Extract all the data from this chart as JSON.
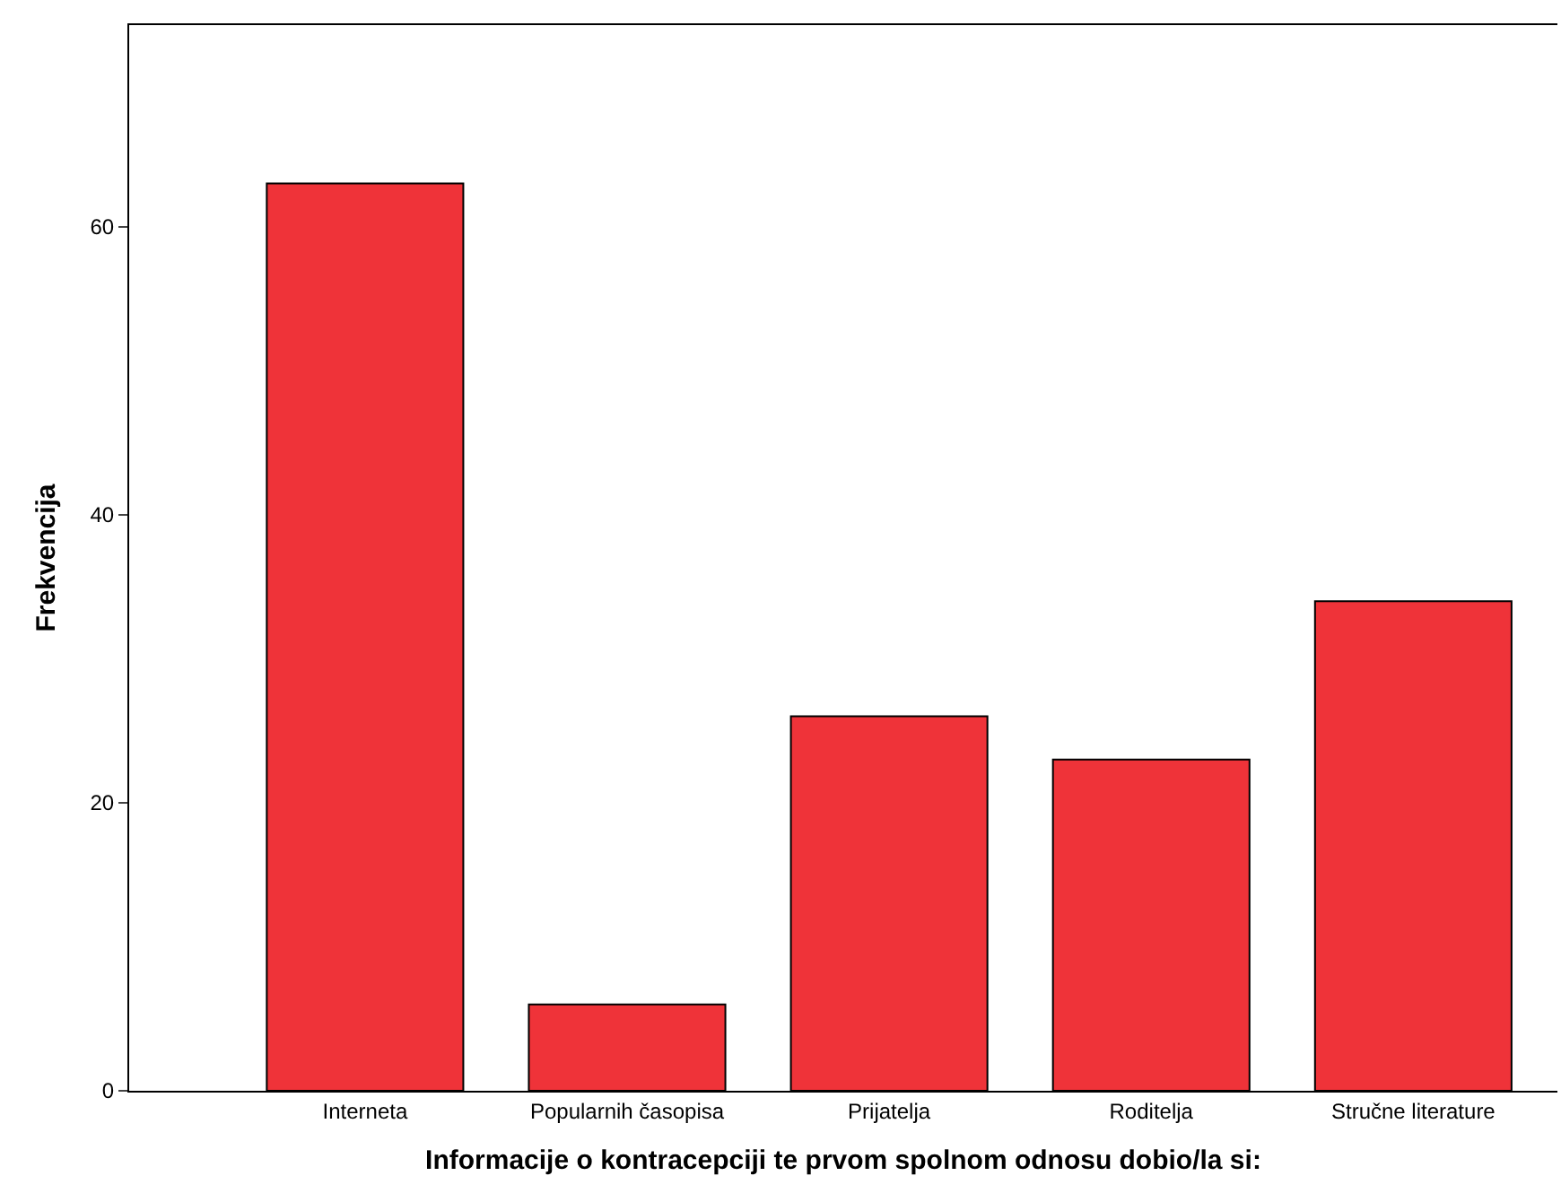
{
  "chart_data": {
    "type": "bar",
    "xlabel": "Informacije o kontracepciji te prvom spolnom odnosu dobio/la si:",
    "ylabel": "Frekvencija",
    "categories": [
      "Interneta",
      "Popularnih časopisa",
      "Prijatelja",
      "Roditelja",
      "Stručne literature"
    ],
    "values": [
      63,
      6,
      26,
      23,
      34
    ],
    "color": "#ef3339",
    "ylim": [
      0,
      74
    ],
    "yticks": [
      0,
      20,
      40,
      60
    ]
  }
}
